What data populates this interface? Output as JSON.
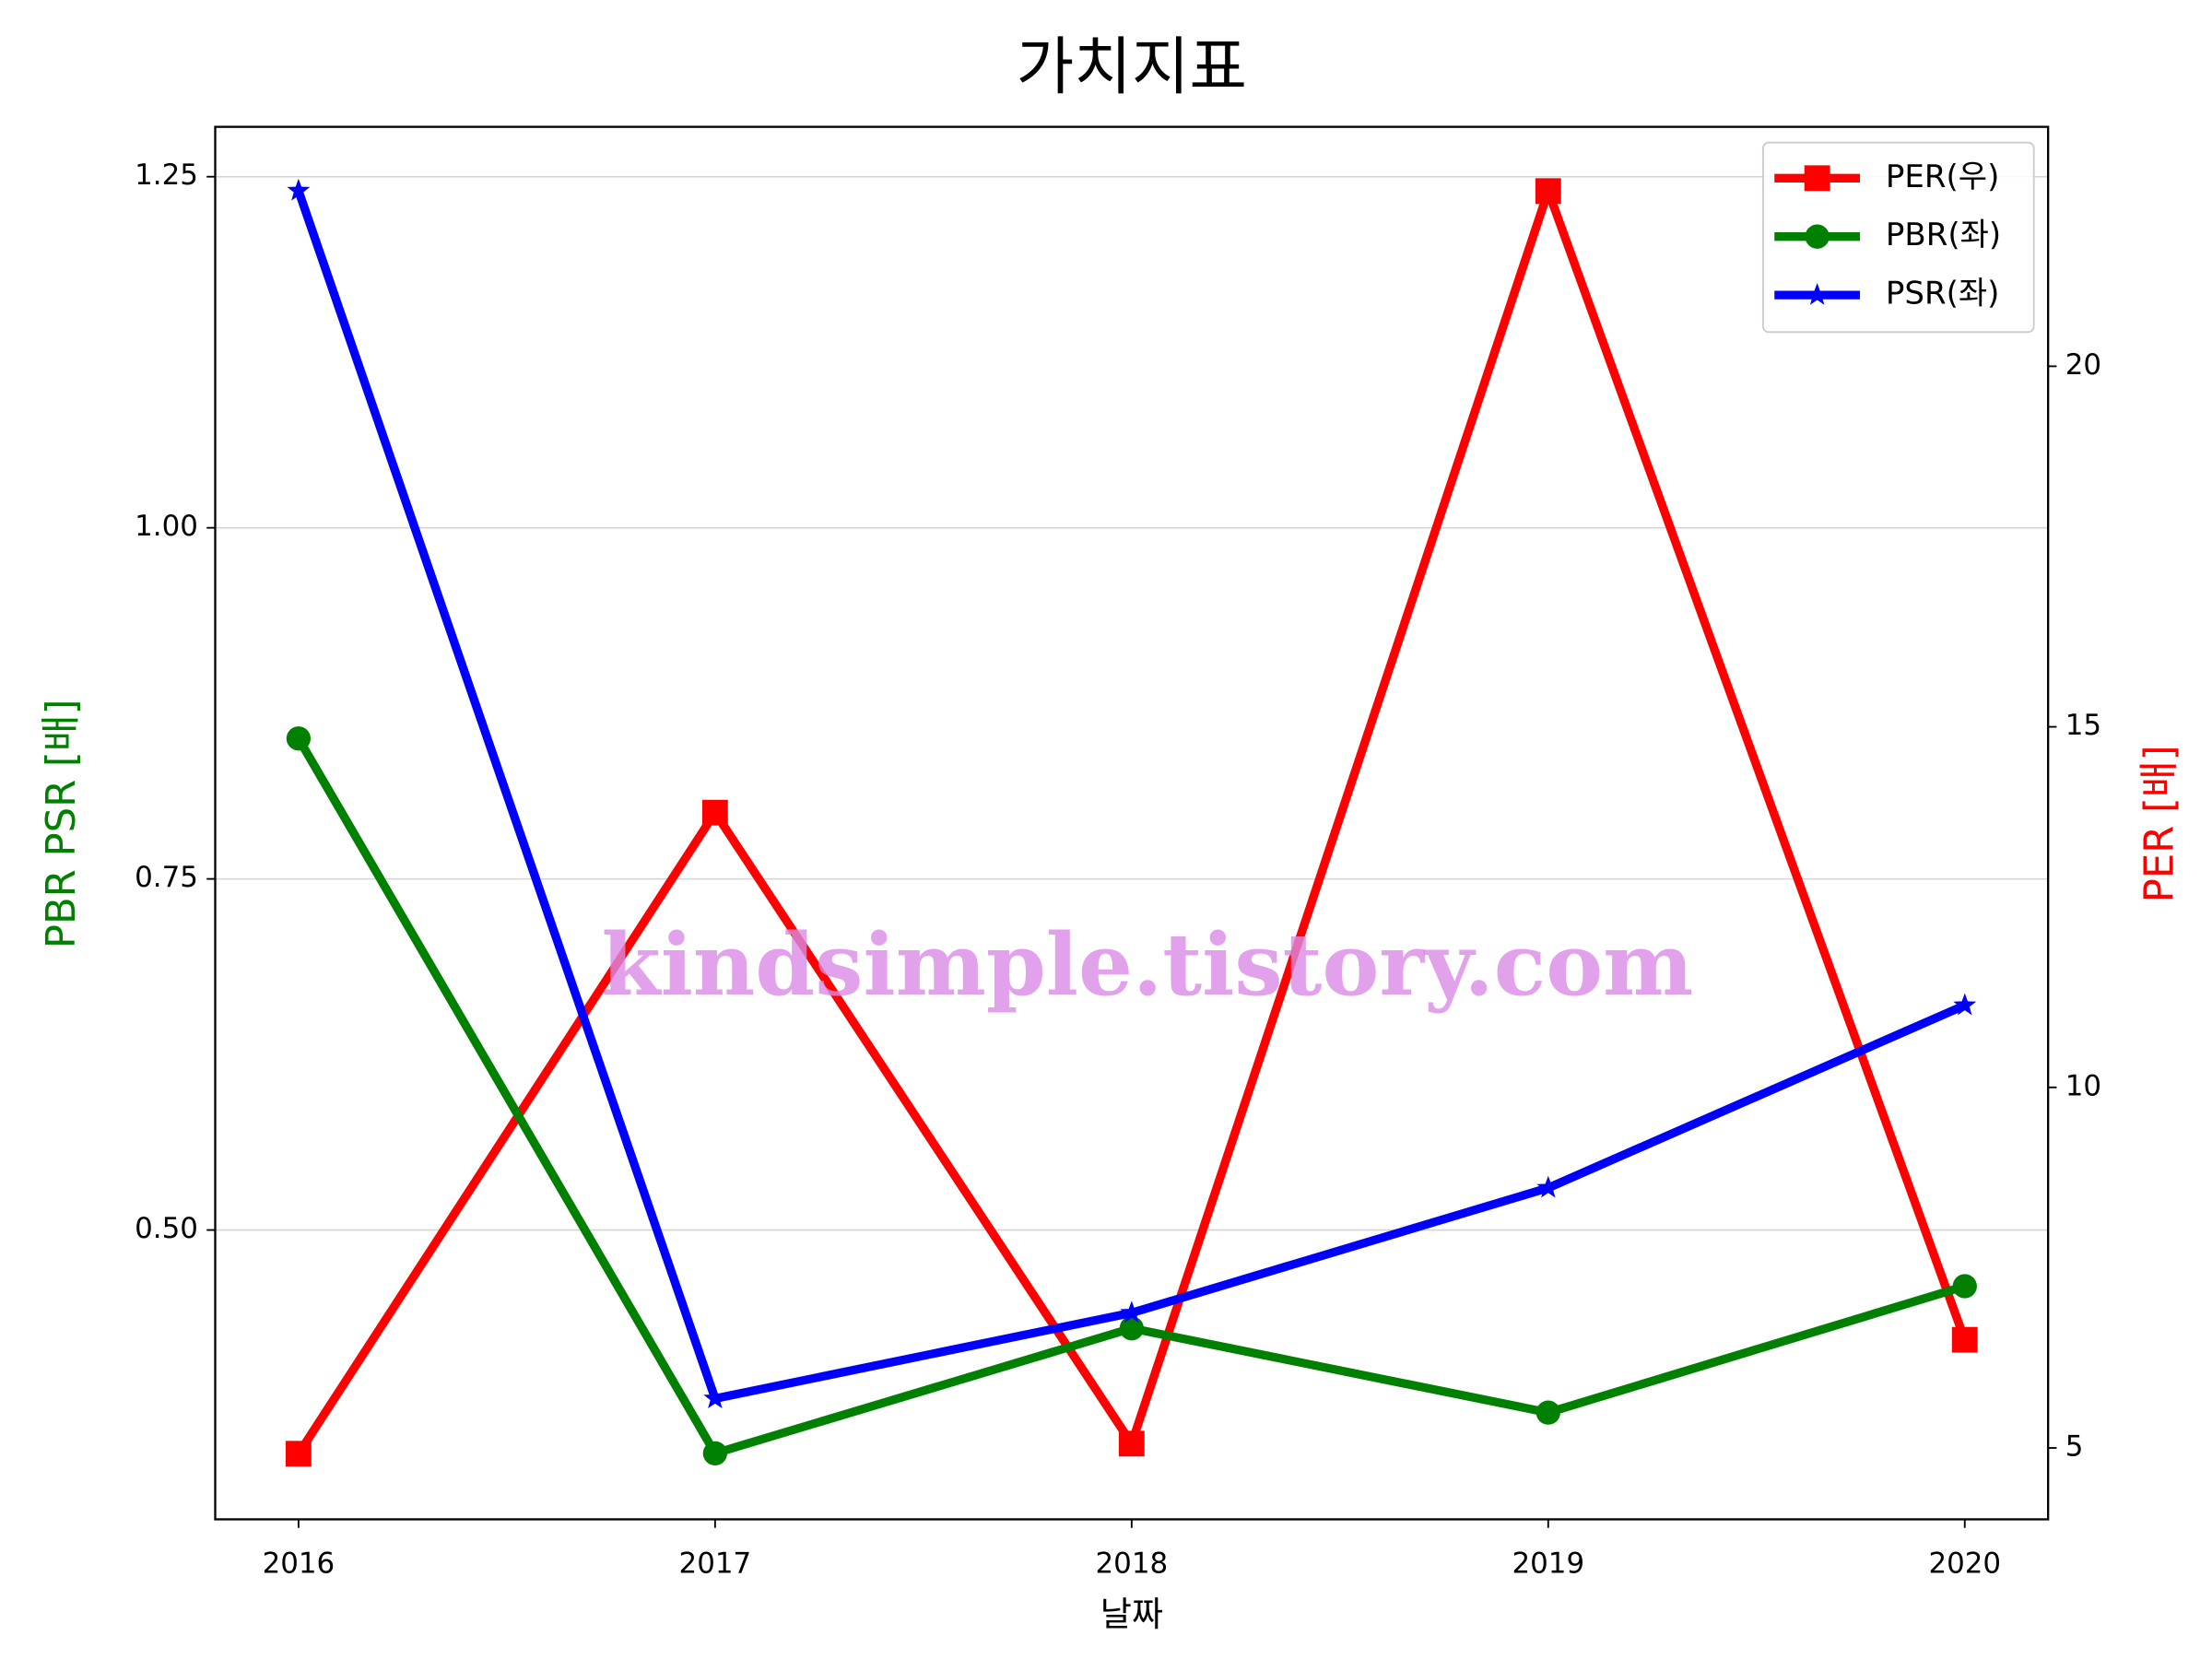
{
  "chart_data": {
    "type": "line",
    "title": "가치지표",
    "xlabel": "날짜",
    "ylabel": "PBR PSR [배]",
    "ylabel_color": "#008000",
    "y2label": "PER [배]",
    "y2label_color": "#ff0000",
    "x": [
      2016,
      2017,
      2018,
      2019,
      2020
    ],
    "xlim": [
      2015.8,
      2020.2
    ],
    "xticks": [
      2016,
      2017,
      2018,
      2019,
      2020
    ],
    "ylim": [
      0.294,
      1.2855
    ],
    "yticks": [
      {
        "value": 0.5,
        "label": "0.50"
      },
      0.75,
      {
        "value": 1,
        "label": "1.00"
      },
      1.25
    ],
    "y2lim": [
      4.01,
      23.32
    ],
    "y2ticks": [
      5,
      10,
      15,
      20
    ],
    "grid": true,
    "legend": "upper right",
    "watermark": "kindsimple.tistory.com",
    "series": [
      {
        "name": "PER(우)",
        "color": "#ff0000",
        "marker": "square",
        "axis": "y2",
        "values": [
          4.92,
          13.81,
          5.06,
          22.43,
          6.5
        ]
      },
      {
        "name": "PBR(좌)",
        "color": "#008000",
        "marker": "circle",
        "values": [
          0.85,
          0.341,
          0.43,
          0.37,
          0.46
        ]
      },
      {
        "name": "PSR(좌)",
        "color": "#0000ff",
        "marker": "star",
        "values": [
          1.24,
          0.38,
          0.441,
          0.53,
          0.66
        ]
      }
    ]
  }
}
